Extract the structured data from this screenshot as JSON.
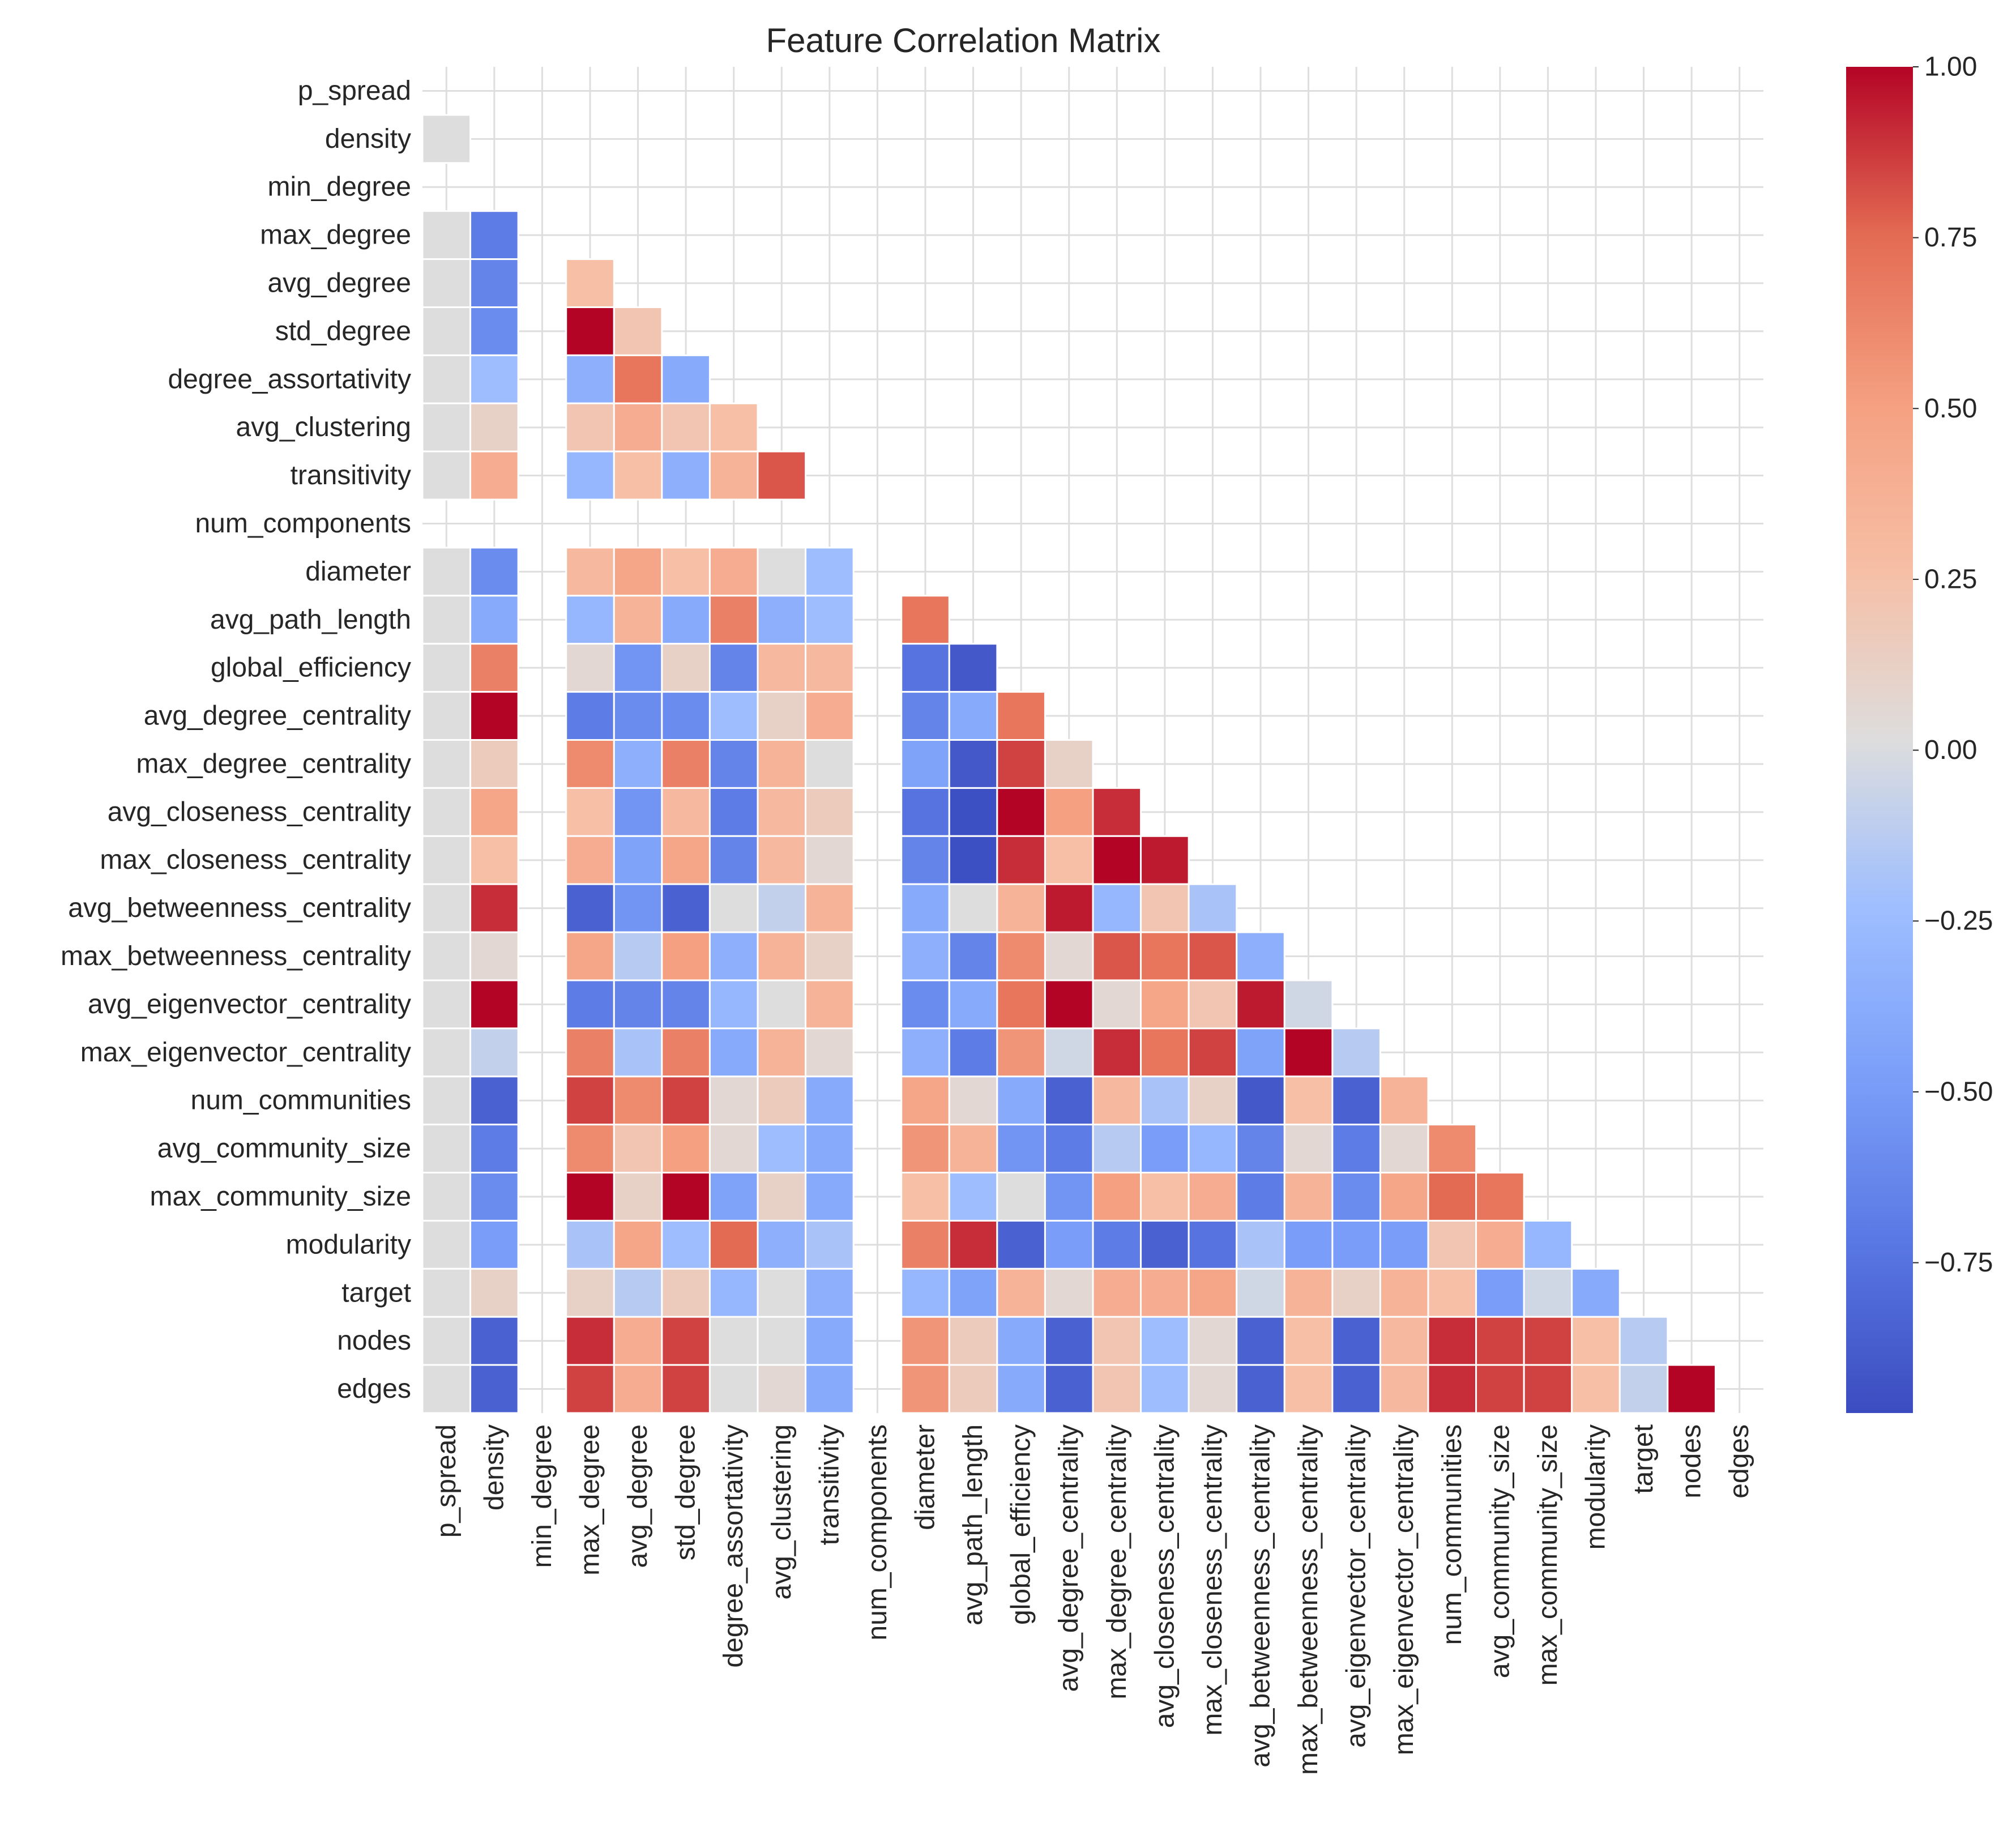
{
  "chart_data": {
    "type": "heatmap",
    "title": "Feature Correlation Matrix",
    "mask": "upper-triangle-including-diagonal",
    "labels": [
      "p_spread",
      "density",
      "min_degree",
      "max_degree",
      "avg_degree",
      "std_degree",
      "degree_assortativity",
      "avg_clustering",
      "transitivity",
      "num_components",
      "diameter",
      "avg_path_length",
      "global_efficiency",
      "avg_degree_centrality",
      "max_degree_centrality",
      "avg_closeness_centrality",
      "max_closeness_centrality",
      "avg_betweenness_centrality",
      "max_betweenness_centrality",
      "avg_eigenvector_centrality",
      "max_eigenvector_centrality",
      "num_communities",
      "avg_community_size",
      "max_community_size",
      "modularity",
      "target",
      "nodes",
      "edges"
    ],
    "constant_features": [
      "min_degree",
      "num_components"
    ],
    "colormap": "coolwarm",
    "vmin": -0.97,
    "vmax": 1.0,
    "colorbar_ticks": [
      "1.00",
      "0.75",
      "0.50",
      "0.25",
      "0.00",
      "−0.25",
      "−0.50",
      "−0.75"
    ],
    "colorbar_tick_values": [
      1.0,
      0.75,
      0.5,
      0.25,
      0.0,
      -0.25,
      -0.5,
      -0.75
    ],
    "values": [
      [],
      [
        0
      ],
      [],
      [
        0,
        -0.7,
        null
      ],
      [
        0,
        -0.65,
        null,
        0.25
      ],
      [
        0,
        -0.6,
        null,
        1.0,
        0.2
      ],
      [
        0,
        -0.25,
        null,
        -0.35,
        0.7,
        -0.4
      ],
      [
        0,
        0.1,
        null,
        0.2,
        0.4,
        0.2,
        0.25
      ],
      [
        0,
        0.4,
        null,
        -0.3,
        0.25,
        -0.35,
        0.35,
        0.8
      ],
      [],
      [
        0,
        -0.6,
        null,
        0.3,
        0.45,
        0.25,
        0.4,
        0,
        -0.25,
        null
      ],
      [
        0,
        -0.4,
        null,
        -0.3,
        0.35,
        -0.4,
        0.65,
        -0.35,
        -0.25,
        null,
        0.7
      ],
      [
        0,
        0.65,
        null,
        0.05,
        -0.55,
        0.1,
        -0.65,
        0.3,
        0.3,
        null,
        -0.75,
        -0.9
      ],
      [
        0,
        1.0,
        null,
        -0.7,
        -0.6,
        -0.6,
        -0.25,
        0.1,
        0.4,
        null,
        -0.65,
        -0.4,
        0.7
      ],
      [
        0,
        0.15,
        null,
        0.6,
        -0.35,
        0.65,
        -0.65,
        0.35,
        0,
        null,
        -0.45,
        -0.9,
        0.85,
        0.1
      ],
      [
        0,
        0.45,
        null,
        0.25,
        -0.55,
        0.3,
        -0.7,
        0.3,
        0.15,
        null,
        -0.75,
        -0.95,
        1.0,
        0.5,
        0.9
      ],
      [
        0,
        0.25,
        null,
        0.4,
        -0.45,
        0.45,
        -0.65,
        0.3,
        0.05,
        null,
        -0.65,
        -0.95,
        0.9,
        0.25,
        1.0,
        0.95
      ],
      [
        0,
        0.9,
        null,
        -0.85,
        -0.55,
        -0.85,
        0,
        -0.1,
        0.35,
        null,
        -0.4,
        0,
        0.35,
        0.95,
        -0.3,
        0.2,
        -0.2
      ],
      [
        0,
        0.05,
        null,
        0.45,
        -0.15,
        0.5,
        -0.35,
        0.35,
        0.1,
        null,
        -0.35,
        -0.65,
        0.6,
        0.05,
        0.8,
        0.7,
        0.8,
        -0.35
      ],
      [
        0,
        1.0,
        null,
        -0.7,
        -0.65,
        -0.65,
        -0.3,
        0,
        0.35,
        null,
        -0.6,
        -0.4,
        0.7,
        1.0,
        0.05,
        0.45,
        0.2,
        0.95,
        -0.05
      ],
      [
        0,
        -0.1,
        null,
        0.65,
        -0.2,
        0.65,
        -0.4,
        0.35,
        0.05,
        null,
        -0.35,
        -0.7,
        0.55,
        -0.05,
        0.9,
        0.7,
        0.85,
        -0.45,
        1.0,
        -0.15
      ],
      [
        0,
        -0.85,
        null,
        0.85,
        0.6,
        0.85,
        0.05,
        0.15,
        -0.4,
        null,
        0.45,
        0.05,
        -0.4,
        -0.85,
        0.3,
        -0.2,
        0.1,
        -0.9,
        0.25,
        -0.85,
        0.35
      ],
      [
        0,
        -0.7,
        null,
        0.6,
        0.2,
        0.5,
        0.05,
        -0.25,
        -0.4,
        null,
        0.55,
        0.35,
        -0.55,
        -0.7,
        -0.15,
        -0.5,
        -0.3,
        -0.65,
        0.05,
        -0.7,
        0.05,
        0.6
      ],
      [
        0,
        -0.6,
        null,
        1.0,
        0.1,
        1.0,
        -0.45,
        0.1,
        -0.4,
        null,
        0.25,
        -0.25,
        0,
        -0.55,
        0.5,
        0.25,
        0.4,
        -0.7,
        0.35,
        -0.6,
        0.45,
        0.75,
        0.7
      ],
      [
        0,
        -0.5,
        null,
        -0.2,
        0.45,
        -0.25,
        0.75,
        -0.35,
        -0.2,
        null,
        0.65,
        0.9,
        -0.85,
        -0.5,
        -0.7,
        -0.85,
        -0.75,
        -0.2,
        -0.5,
        -0.5,
        -0.5,
        0.2,
        0.4,
        -0.3
      ],
      [
        0,
        0.1,
        null,
        0.1,
        -0.15,
        0.15,
        -0.3,
        0,
        -0.35,
        null,
        -0.3,
        -0.45,
        0.35,
        0.05,
        0.4,
        0.4,
        0.45,
        -0.05,
        0.35,
        0.1,
        0.35,
        0.25,
        -0.5,
        -0.05,
        -0.4
      ],
      [
        0,
        -0.85,
        null,
        0.9,
        0.4,
        0.85,
        0,
        0,
        -0.4,
        null,
        0.55,
        0.15,
        -0.4,
        -0.85,
        0.2,
        -0.25,
        0.05,
        -0.85,
        0.25,
        -0.85,
        0.3,
        0.9,
        0.85,
        0.85,
        0.25,
        -0.15
      ],
      [
        0,
        -0.85,
        null,
        0.85,
        0.4,
        0.85,
        0,
        0.05,
        -0.4,
        null,
        0.55,
        0.15,
        -0.4,
        -0.85,
        0.2,
        -0.25,
        0.05,
        -0.85,
        0.25,
        -0.85,
        0.3,
        0.9,
        0.85,
        0.85,
        0.25,
        -0.1,
        1.0
      ]
    ]
  }
}
